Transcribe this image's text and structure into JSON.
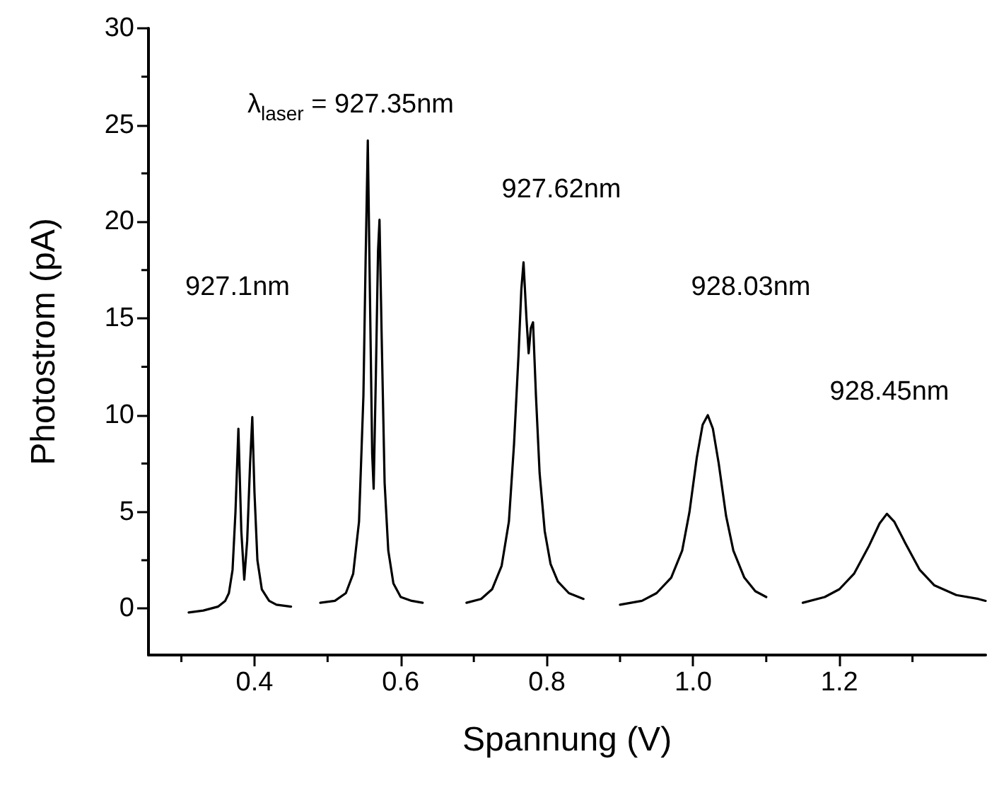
{
  "chart_data": {
    "type": "line",
    "xlabel": "Spannung (V)",
    "ylabel": "Photostrom (pA)",
    "xlim": [
      0.255,
      1.4
    ],
    "ylim": [
      -2.4,
      30
    ],
    "xticks": [
      {
        "value": 0.3,
        "label": null
      },
      0.4,
      {
        "value": 0.5,
        "label": null
      },
      0.6,
      {
        "value": 0.7,
        "label": null
      },
      0.8,
      {
        "value": 0.9,
        "label": null
      },
      {
        "value": 1.0,
        "label": "1.0"
      },
      {
        "value": 1.1,
        "label": null
      },
      1.2,
      {
        "value": 1.3,
        "label": null
      }
    ],
    "yticks": [
      0,
      {
        "value": 2.5,
        "label": null
      },
      5,
      {
        "value": 7.5,
        "label": null
      },
      10,
      {
        "value": 12.5,
        "label": null
      },
      15,
      {
        "value": 17.5,
        "label": null
      },
      20,
      {
        "value": 22.5,
        "label": null
      },
      25,
      {
        "value": 27.5,
        "label": null
      },
      30
    ],
    "grid": false,
    "marker": "none",
    "line_style": "solid",
    "annotations": [
      "λ$_{laser}$ = 927.35nm",
      "927.1nm",
      "927.62nm",
      "928.03nm",
      "928.45nm"
    ],
    "series": [
      {
        "color": "#000000",
        "x": [
          0.31,
          0.33,
          0.35,
          0.36,
          0.365,
          0.37,
          0.374,
          0.378,
          0.382,
          0.386,
          0.39,
          0.394,
          0.397,
          0.4,
          0.404,
          0.41,
          0.42,
          0.43,
          0.45
        ],
        "values": [
          -0.2,
          -0.1,
          0.1,
          0.4,
          0.8,
          2.0,
          5.0,
          9.3,
          4.0,
          1.5,
          3.5,
          7.5,
          9.9,
          6.0,
          2.5,
          1.0,
          0.4,
          0.2,
          0.1
        ]
      },
      {
        "color": "#000000",
        "x": [
          0.49,
          0.51,
          0.525,
          0.535,
          0.543,
          0.549,
          0.552,
          0.555,
          0.558,
          0.561,
          0.563,
          0.566,
          0.569,
          0.571,
          0.574,
          0.578,
          0.583,
          0.59,
          0.6,
          0.615,
          0.63
        ],
        "values": [
          0.3,
          0.4,
          0.8,
          1.8,
          4.5,
          11.0,
          18.0,
          24.2,
          16.0,
          8.0,
          6.2,
          12.0,
          18.5,
          20.1,
          14.0,
          6.5,
          3.0,
          1.3,
          0.6,
          0.4,
          0.3
        ]
      },
      {
        "color": "#000000",
        "x": [
          0.69,
          0.71,
          0.725,
          0.738,
          0.748,
          0.755,
          0.761,
          0.765,
          0.768,
          0.772,
          0.775,
          0.778,
          0.781,
          0.785,
          0.79,
          0.797,
          0.805,
          0.815,
          0.83,
          0.85
        ],
        "values": [
          0.3,
          0.5,
          1.0,
          2.2,
          4.5,
          8.5,
          13.0,
          16.5,
          17.9,
          15.0,
          13.2,
          14.5,
          14.8,
          11.0,
          7.0,
          4.0,
          2.3,
          1.4,
          0.8,
          0.5
        ]
      },
      {
        "color": "#000000",
        "x": [
          0.9,
          0.93,
          0.95,
          0.97,
          0.985,
          0.995,
          1.005,
          1.013,
          1.02,
          1.027,
          1.035,
          1.045,
          1.055,
          1.07,
          1.085,
          1.1
        ],
        "values": [
          0.2,
          0.4,
          0.8,
          1.6,
          3.0,
          5.0,
          7.8,
          9.5,
          10.0,
          9.3,
          7.5,
          4.8,
          3.0,
          1.6,
          0.9,
          0.6
        ]
      },
      {
        "color": "#000000",
        "x": [
          1.15,
          1.18,
          1.2,
          1.22,
          1.24,
          1.255,
          1.265,
          1.275,
          1.29,
          1.31,
          1.33,
          1.36,
          1.39,
          1.4
        ],
        "values": [
          0.3,
          0.6,
          1.0,
          1.8,
          3.2,
          4.4,
          4.9,
          4.5,
          3.4,
          2.0,
          1.2,
          0.7,
          0.5,
          0.4
        ]
      }
    ]
  }
}
